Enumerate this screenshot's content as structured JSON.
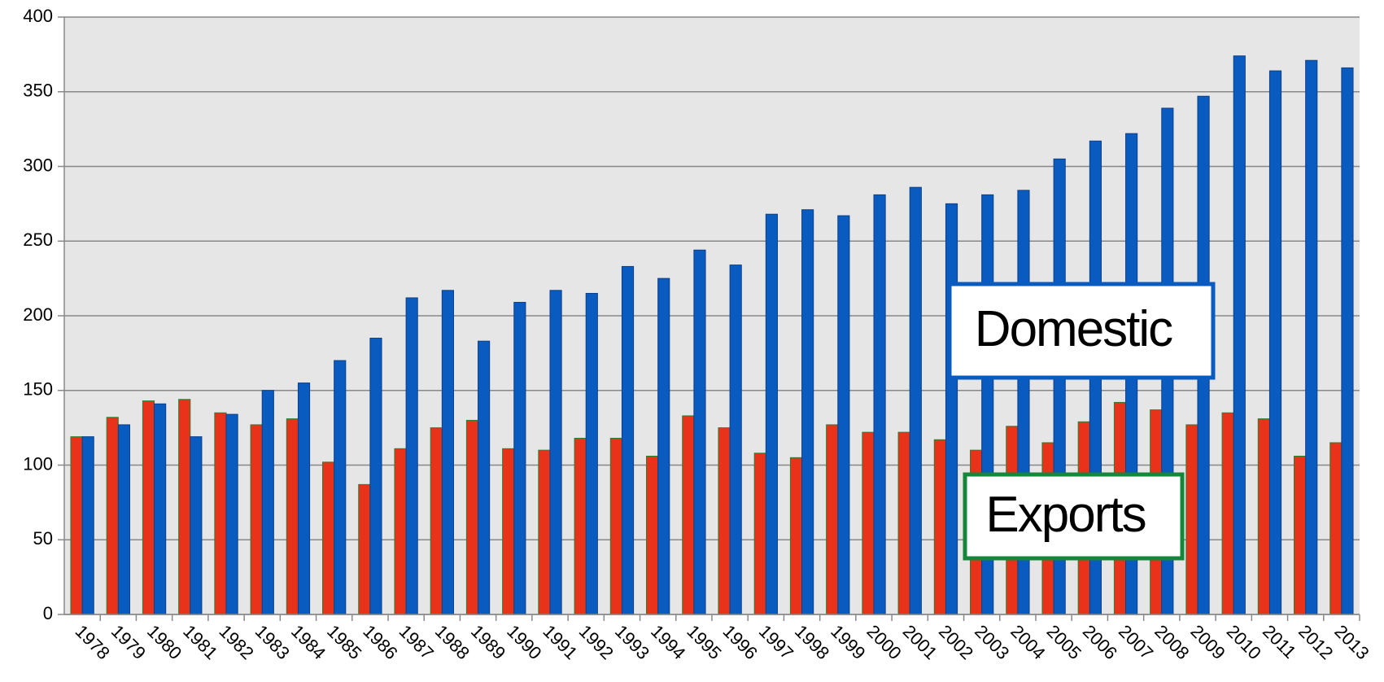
{
  "chart_data": {
    "type": "bar",
    "categories": [
      "1978",
      "1979",
      "1980",
      "1981",
      "1982",
      "1983",
      "1984",
      "1985",
      "1986",
      "1987",
      "1988",
      "1989",
      "1990",
      "1991",
      "1992",
      "1993",
      "1994",
      "1995",
      "1996",
      "1997",
      "1998",
      "1999",
      "2000",
      "2001",
      "2002",
      "2003",
      "2004",
      "2005",
      "2006",
      "2007",
      "2008",
      "2009",
      "2010",
      "2011",
      "2012",
      "2013"
    ],
    "series": [
      {
        "name": "Exports",
        "color": "#e8321a",
        "values": [
          119,
          132,
          143,
          144,
          135,
          127,
          131,
          102,
          87,
          111,
          125,
          130,
          111,
          110,
          118,
          118,
          106,
          133,
          125,
          108,
          105,
          127,
          122,
          122,
          117,
          110,
          126,
          115,
          129,
          142,
          137,
          127,
          135,
          131,
          106,
          115
        ]
      },
      {
        "name": "Domestic",
        "color": "#0a5bc0",
        "values": [
          119,
          127,
          141,
          119,
          134,
          150,
          155,
          170,
          185,
          212,
          217,
          183,
          209,
          217,
          215,
          233,
          225,
          244,
          234,
          268,
          271,
          267,
          281,
          286,
          275,
          281,
          284,
          305,
          317,
          322,
          339,
          347,
          374,
          364,
          371,
          366
        ]
      }
    ],
    "ylim": [
      0,
      400
    ],
    "yticks": [
      0,
      50,
      100,
      150,
      200,
      250,
      300,
      350,
      400
    ],
    "grid": true
  }
}
